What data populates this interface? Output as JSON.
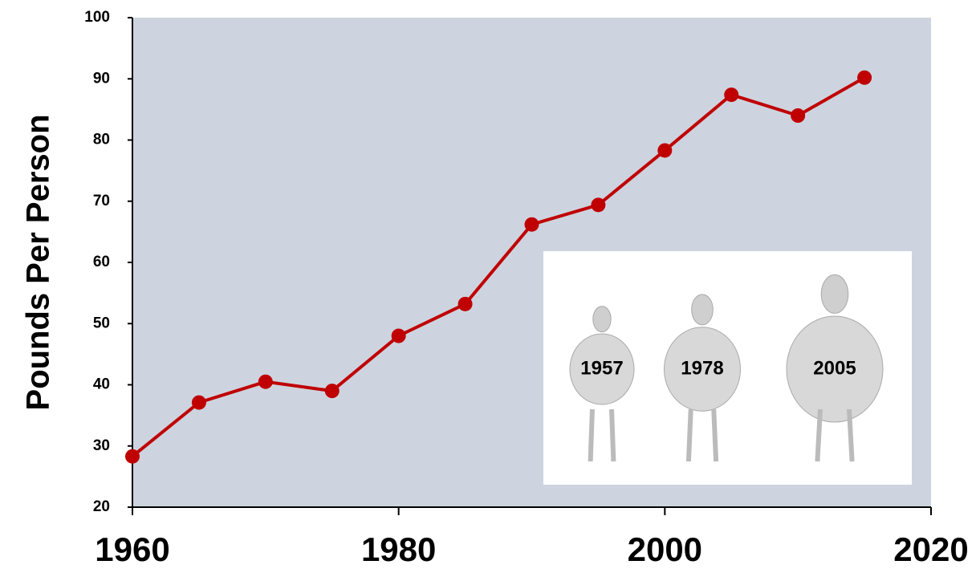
{
  "chart_data": {
    "type": "line",
    "y_label": "Pounds Per Person",
    "x": [
      1960,
      1965,
      1970,
      1975,
      1980,
      1985,
      1990,
      1995,
      2000,
      2005,
      2010,
      2015
    ],
    "series": [
      {
        "color": "#c00000",
        "values": [
          28.3,
          37.1,
          40.5,
          39,
          48,
          53.2,
          66.2,
          69.4,
          78.3,
          87.4,
          84,
          90.2
        ]
      }
    ],
    "xlim": [
      1960,
      2020
    ],
    "xticks": [
      1960,
      1980,
      2000,
      2020
    ],
    "ylim": [
      20,
      100
    ],
    "yticks": [
      20,
      30,
      40,
      50,
      60,
      70,
      80,
      90,
      100
    ],
    "grid": false,
    "plot_background": "#cdd4df",
    "annotations": [
      "1957",
      "1978",
      "2005"
    ]
  }
}
